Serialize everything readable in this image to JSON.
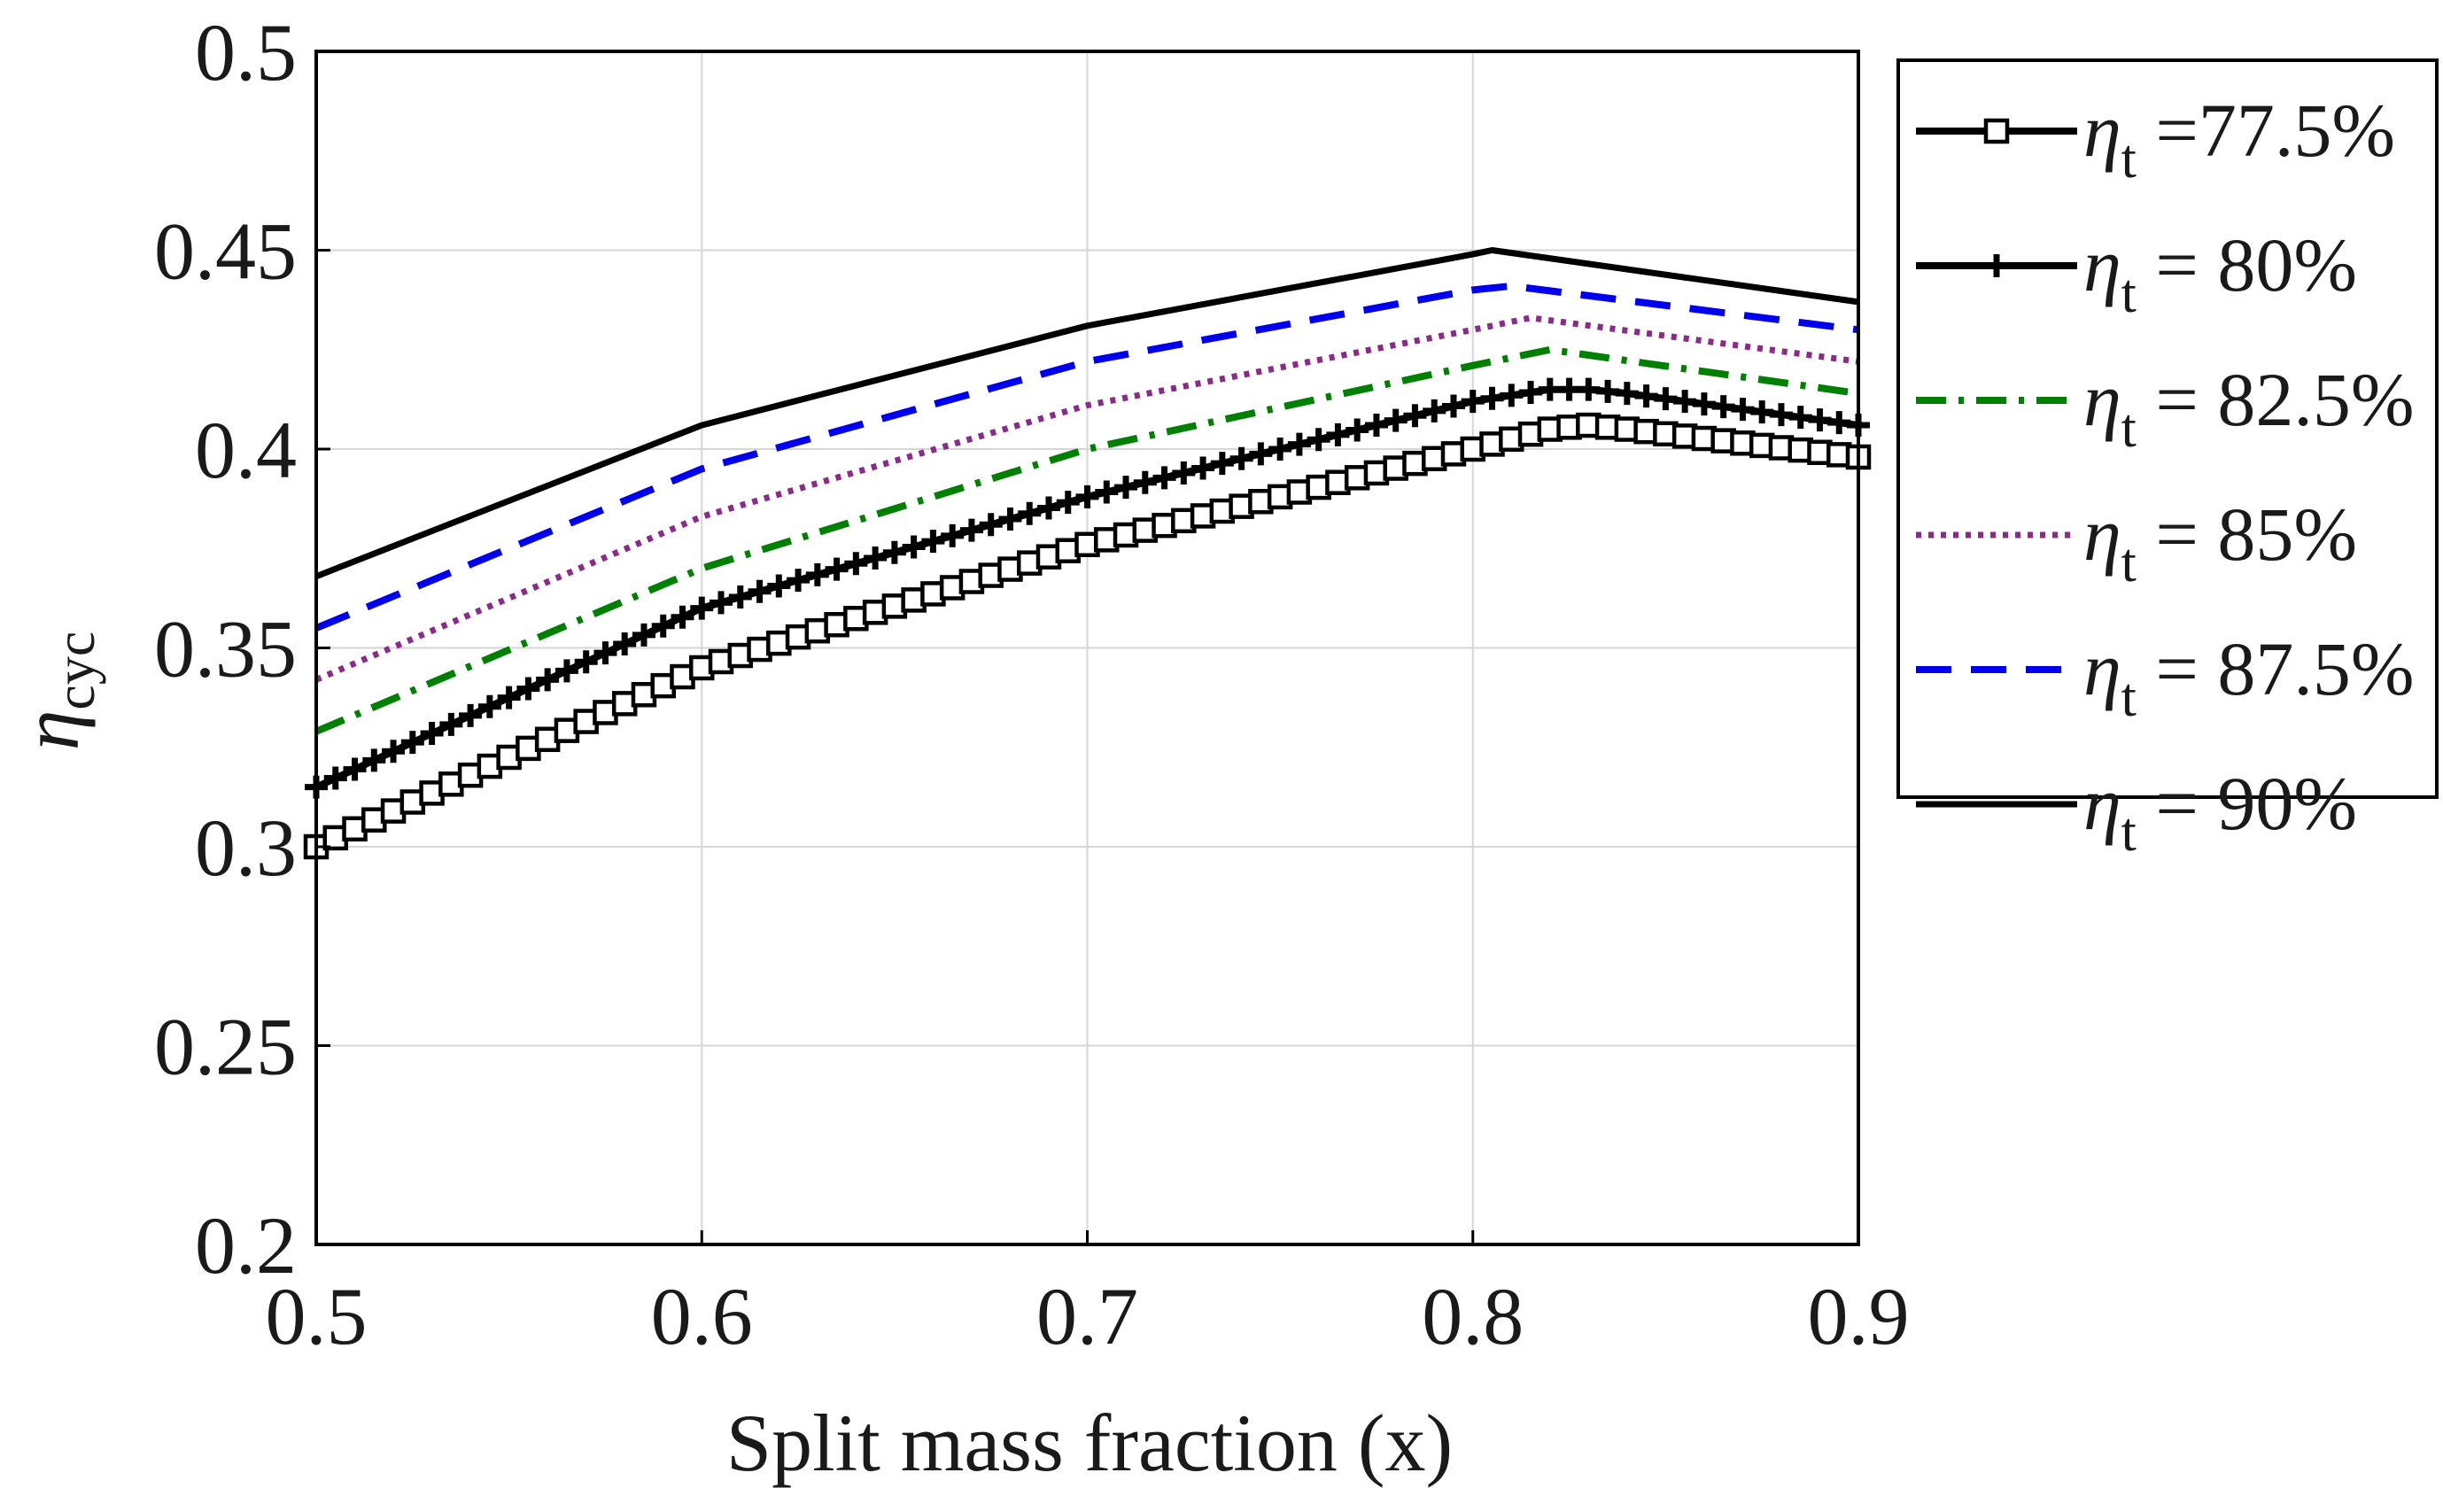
{
  "chart_data": {
    "type": "line",
    "xlabel": "Split mass fraction (x)",
    "ylabel": {
      "symbol": "η",
      "subscript": "cyc"
    },
    "xlim": [
      0.5,
      0.9
    ],
    "ylim": [
      0.2,
      0.5
    ],
    "x_ticks": [
      "0.5",
      "0.6",
      "0.7",
      "0.8",
      "0.9"
    ],
    "y_ticks": [
      "0.2",
      "0.25",
      "0.3",
      "0.35",
      "0.4",
      "0.45",
      "0.5"
    ],
    "grid": true,
    "legend_position": "outside right",
    "series": [
      {
        "name": "η_t =77.5%",
        "legend": {
          "symbol": "η",
          "sub": "t",
          "text": " =77.5%"
        },
        "color": "#000000",
        "line_style": "solid",
        "marker": "square",
        "points": [
          [
            0.5,
            0.3
          ],
          [
            0.6,
            0.345
          ],
          [
            0.7,
            0.376
          ],
          [
            0.8,
            0.4
          ],
          [
            0.82,
            0.405
          ],
          [
            0.83,
            0.406
          ],
          [
            0.84,
            0.405
          ],
          [
            0.9,
            0.398
          ]
        ]
      },
      {
        "name": "η_t = 80%",
        "legend": {
          "symbol": "η",
          "sub": "t",
          "text": " = 80%"
        },
        "color": "#000000",
        "line_style": "solid",
        "marker": "plus",
        "points": [
          [
            0.5,
            0.315
          ],
          [
            0.6,
            0.36
          ],
          [
            0.7,
            0.388
          ],
          [
            0.8,
            0.412
          ],
          [
            0.82,
            0.415
          ],
          [
            0.83,
            0.415
          ],
          [
            0.84,
            0.414
          ],
          [
            0.9,
            0.406
          ]
        ]
      },
      {
        "name": "η_t = 82.5%",
        "legend": {
          "symbol": "η",
          "sub": "t",
          "text": " = 82.5%"
        },
        "color": "#008000",
        "line_style": "dashdot",
        "marker": "none",
        "points": [
          [
            0.5,
            0.329
          ],
          [
            0.6,
            0.37
          ],
          [
            0.7,
            0.4
          ],
          [
            0.8,
            0.421
          ],
          [
            0.82,
            0.425
          ],
          [
            0.9,
            0.414
          ]
        ]
      },
      {
        "name": "η_t = 85%",
        "legend": {
          "symbol": "η",
          "sub": "t",
          "text": " = 85%"
        },
        "color": "#8b2a8b",
        "line_style": "dotted",
        "marker": "none",
        "points": [
          [
            0.5,
            0.342
          ],
          [
            0.6,
            0.383
          ],
          [
            0.7,
            0.411
          ],
          [
            0.8,
            0.43
          ],
          [
            0.815,
            0.433
          ],
          [
            0.9,
            0.422
          ]
        ]
      },
      {
        "name": "η_t = 87.5%",
        "legend": {
          "symbol": "η",
          "sub": "t",
          "text": " = 87.5%"
        },
        "color": "#0000ee",
        "line_style": "dashed",
        "marker": "none",
        "points": [
          [
            0.5,
            0.355
          ],
          [
            0.6,
            0.395
          ],
          [
            0.7,
            0.422
          ],
          [
            0.8,
            0.44
          ],
          [
            0.81,
            0.441
          ],
          [
            0.9,
            0.43
          ]
        ]
      },
      {
        "name": "η_t = 90%",
        "legend": {
          "symbol": "η",
          "sub": "t",
          "text": " = 90%"
        },
        "color": "#000000",
        "line_style": "solid",
        "marker": "none",
        "points": [
          [
            0.5,
            0.368
          ],
          [
            0.6,
            0.406
          ],
          [
            0.7,
            0.431
          ],
          [
            0.8,
            0.449
          ],
          [
            0.805,
            0.45
          ],
          [
            0.9,
            0.437
          ]
        ]
      }
    ]
  }
}
